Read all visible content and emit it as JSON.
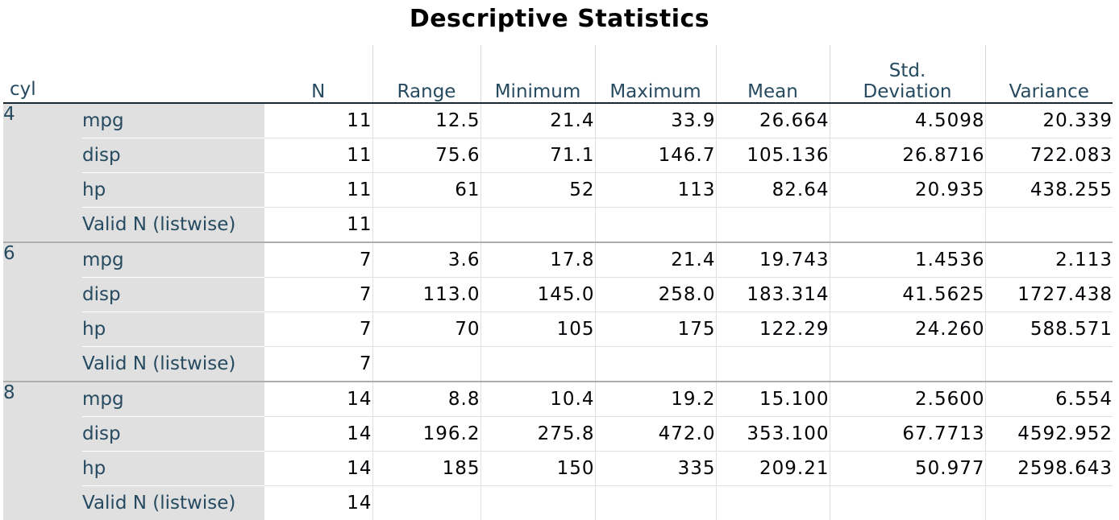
{
  "title": "Descriptive Statistics",
  "headers": {
    "cyl": "cyl",
    "n": "N",
    "range": "Range",
    "minimum": "Minimum",
    "maximum": "Maximum",
    "mean": "Mean",
    "std_line1": "Std.",
    "std_line2": "Deviation",
    "variance": "Variance"
  },
  "groups": [
    {
      "cyl": "4",
      "rows": [
        {
          "var": "mpg",
          "n": "11",
          "range": "12.5",
          "min": "21.4",
          "max": "33.9",
          "mean": "26.664",
          "sd": "4.5098",
          "variance": "20.339"
        },
        {
          "var": "disp",
          "n": "11",
          "range": "75.6",
          "min": "71.1",
          "max": "146.7",
          "mean": "105.136",
          "sd": "26.8716",
          "variance": "722.083"
        },
        {
          "var": "hp",
          "n": "11",
          "range": "61",
          "min": "52",
          "max": "113",
          "mean": "82.64",
          "sd": "20.935",
          "variance": "438.255"
        },
        {
          "var": "Valid N (listwise)",
          "n": "11",
          "range": "",
          "min": "",
          "max": "",
          "mean": "",
          "sd": "",
          "variance": ""
        }
      ]
    },
    {
      "cyl": "6",
      "rows": [
        {
          "var": "mpg",
          "n": "7",
          "range": "3.6",
          "min": "17.8",
          "max": "21.4",
          "mean": "19.743",
          "sd": "1.4536",
          "variance": "2.113"
        },
        {
          "var": "disp",
          "n": "7",
          "range": "113.0",
          "min": "145.0",
          "max": "258.0",
          "mean": "183.314",
          "sd": "41.5625",
          "variance": "1727.438"
        },
        {
          "var": "hp",
          "n": "7",
          "range": "70",
          "min": "105",
          "max": "175",
          "mean": "122.29",
          "sd": "24.260",
          "variance": "588.571"
        },
        {
          "var": "Valid N (listwise)",
          "n": "7",
          "range": "",
          "min": "",
          "max": "",
          "mean": "",
          "sd": "",
          "variance": ""
        }
      ]
    },
    {
      "cyl": "8",
      "rows": [
        {
          "var": "mpg",
          "n": "14",
          "range": "8.8",
          "min": "10.4",
          "max": "19.2",
          "mean": "15.100",
          "sd": "2.5600",
          "variance": "6.554"
        },
        {
          "var": "disp",
          "n": "14",
          "range": "196.2",
          "min": "275.8",
          "max": "472.0",
          "mean": "353.100",
          "sd": "67.7713",
          "variance": "4592.952"
        },
        {
          "var": "hp",
          "n": "14",
          "range": "185",
          "min": "150",
          "max": "335",
          "mean": "209.21",
          "sd": "50.977",
          "variance": "2598.643"
        },
        {
          "var": "Valid N (listwise)",
          "n": "14",
          "range": "",
          "min": "",
          "max": "",
          "mean": "",
          "sd": "",
          "variance": ""
        }
      ]
    }
  ]
}
